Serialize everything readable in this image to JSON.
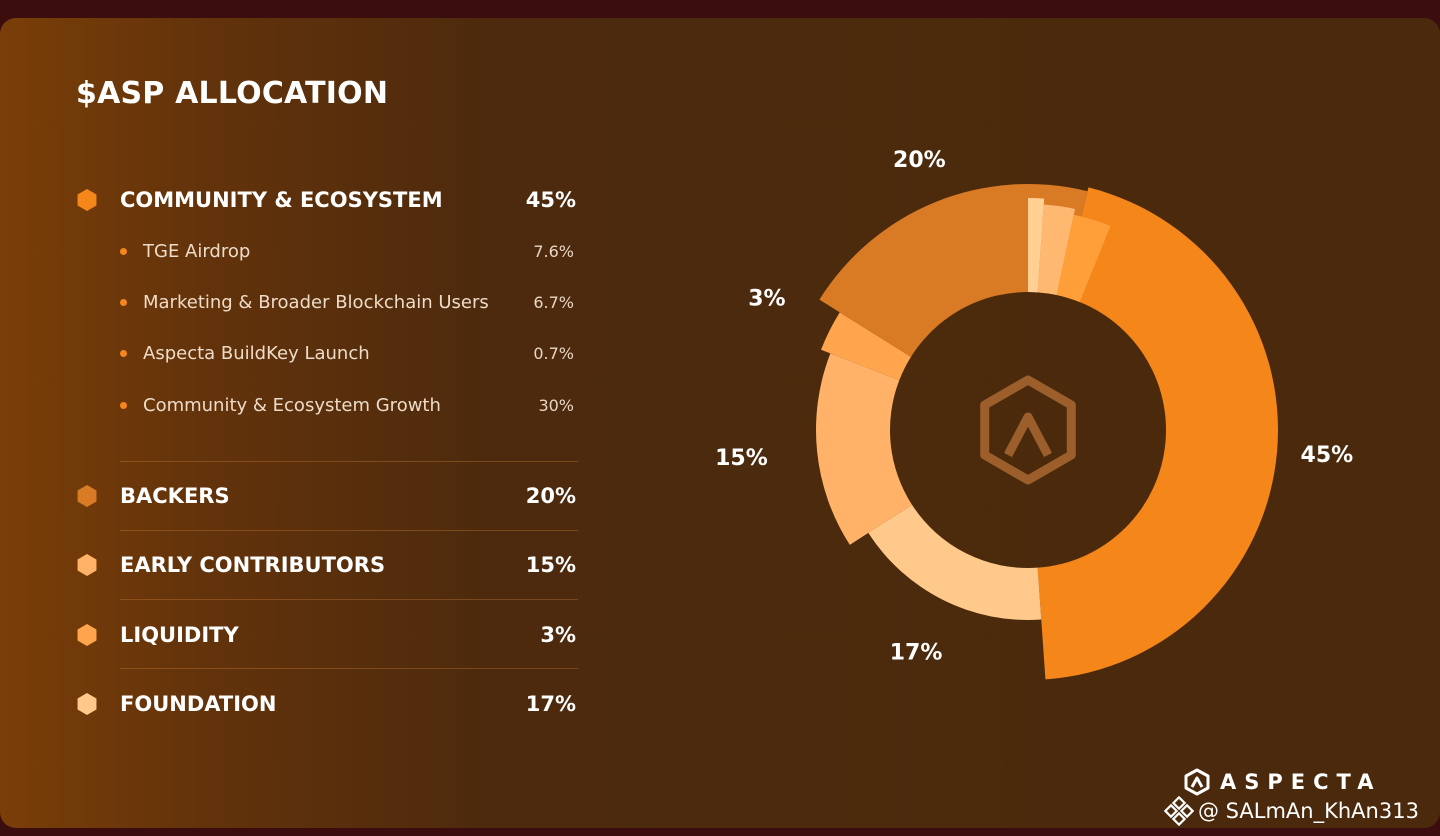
{
  "chart_data": {
    "type": "pie",
    "title": "$ASP ALLOCATION",
    "categories": [
      "COMMUNITY & ECOSYSTEM",
      "BACKERS",
      "EARLY CONTRIBUTORS",
      "LIQUIDITY",
      "FOUNDATION"
    ],
    "values": [
      45,
      20,
      15,
      3,
      17
    ],
    "value_labels": [
      "45%",
      "20%",
      "15%",
      "3%",
      "17%"
    ],
    "sub_items": [
      {
        "label": "TGE Airdrop",
        "value": 7.6,
        "value_label": "7.6%"
      },
      {
        "label": "Marketing & Broader Blockchain Users",
        "value": 6.7,
        "value_label": "6.7%"
      },
      {
        "label": "Aspecta BuildKey Launch",
        "value": 0.7,
        "value_label": "0.7%"
      },
      {
        "label": "Community & Ecosystem Growth",
        "value": 30,
        "value_label": "30%"
      }
    ],
    "colors": {
      "community": "#f4861a",
      "backers": "#d97a25",
      "early_contributors": "#ffb268",
      "liquidity": "#ffa54d",
      "foundation": "#ffc98c"
    },
    "center_icon": "aspecta-logo-icon",
    "legend": "left"
  },
  "brand": {
    "name": "ASPECTA",
    "icon": "aspecta-logo-icon"
  },
  "watermark": {
    "text": "@ SALmAn_KhAn313",
    "icon": "binance-icon"
  }
}
